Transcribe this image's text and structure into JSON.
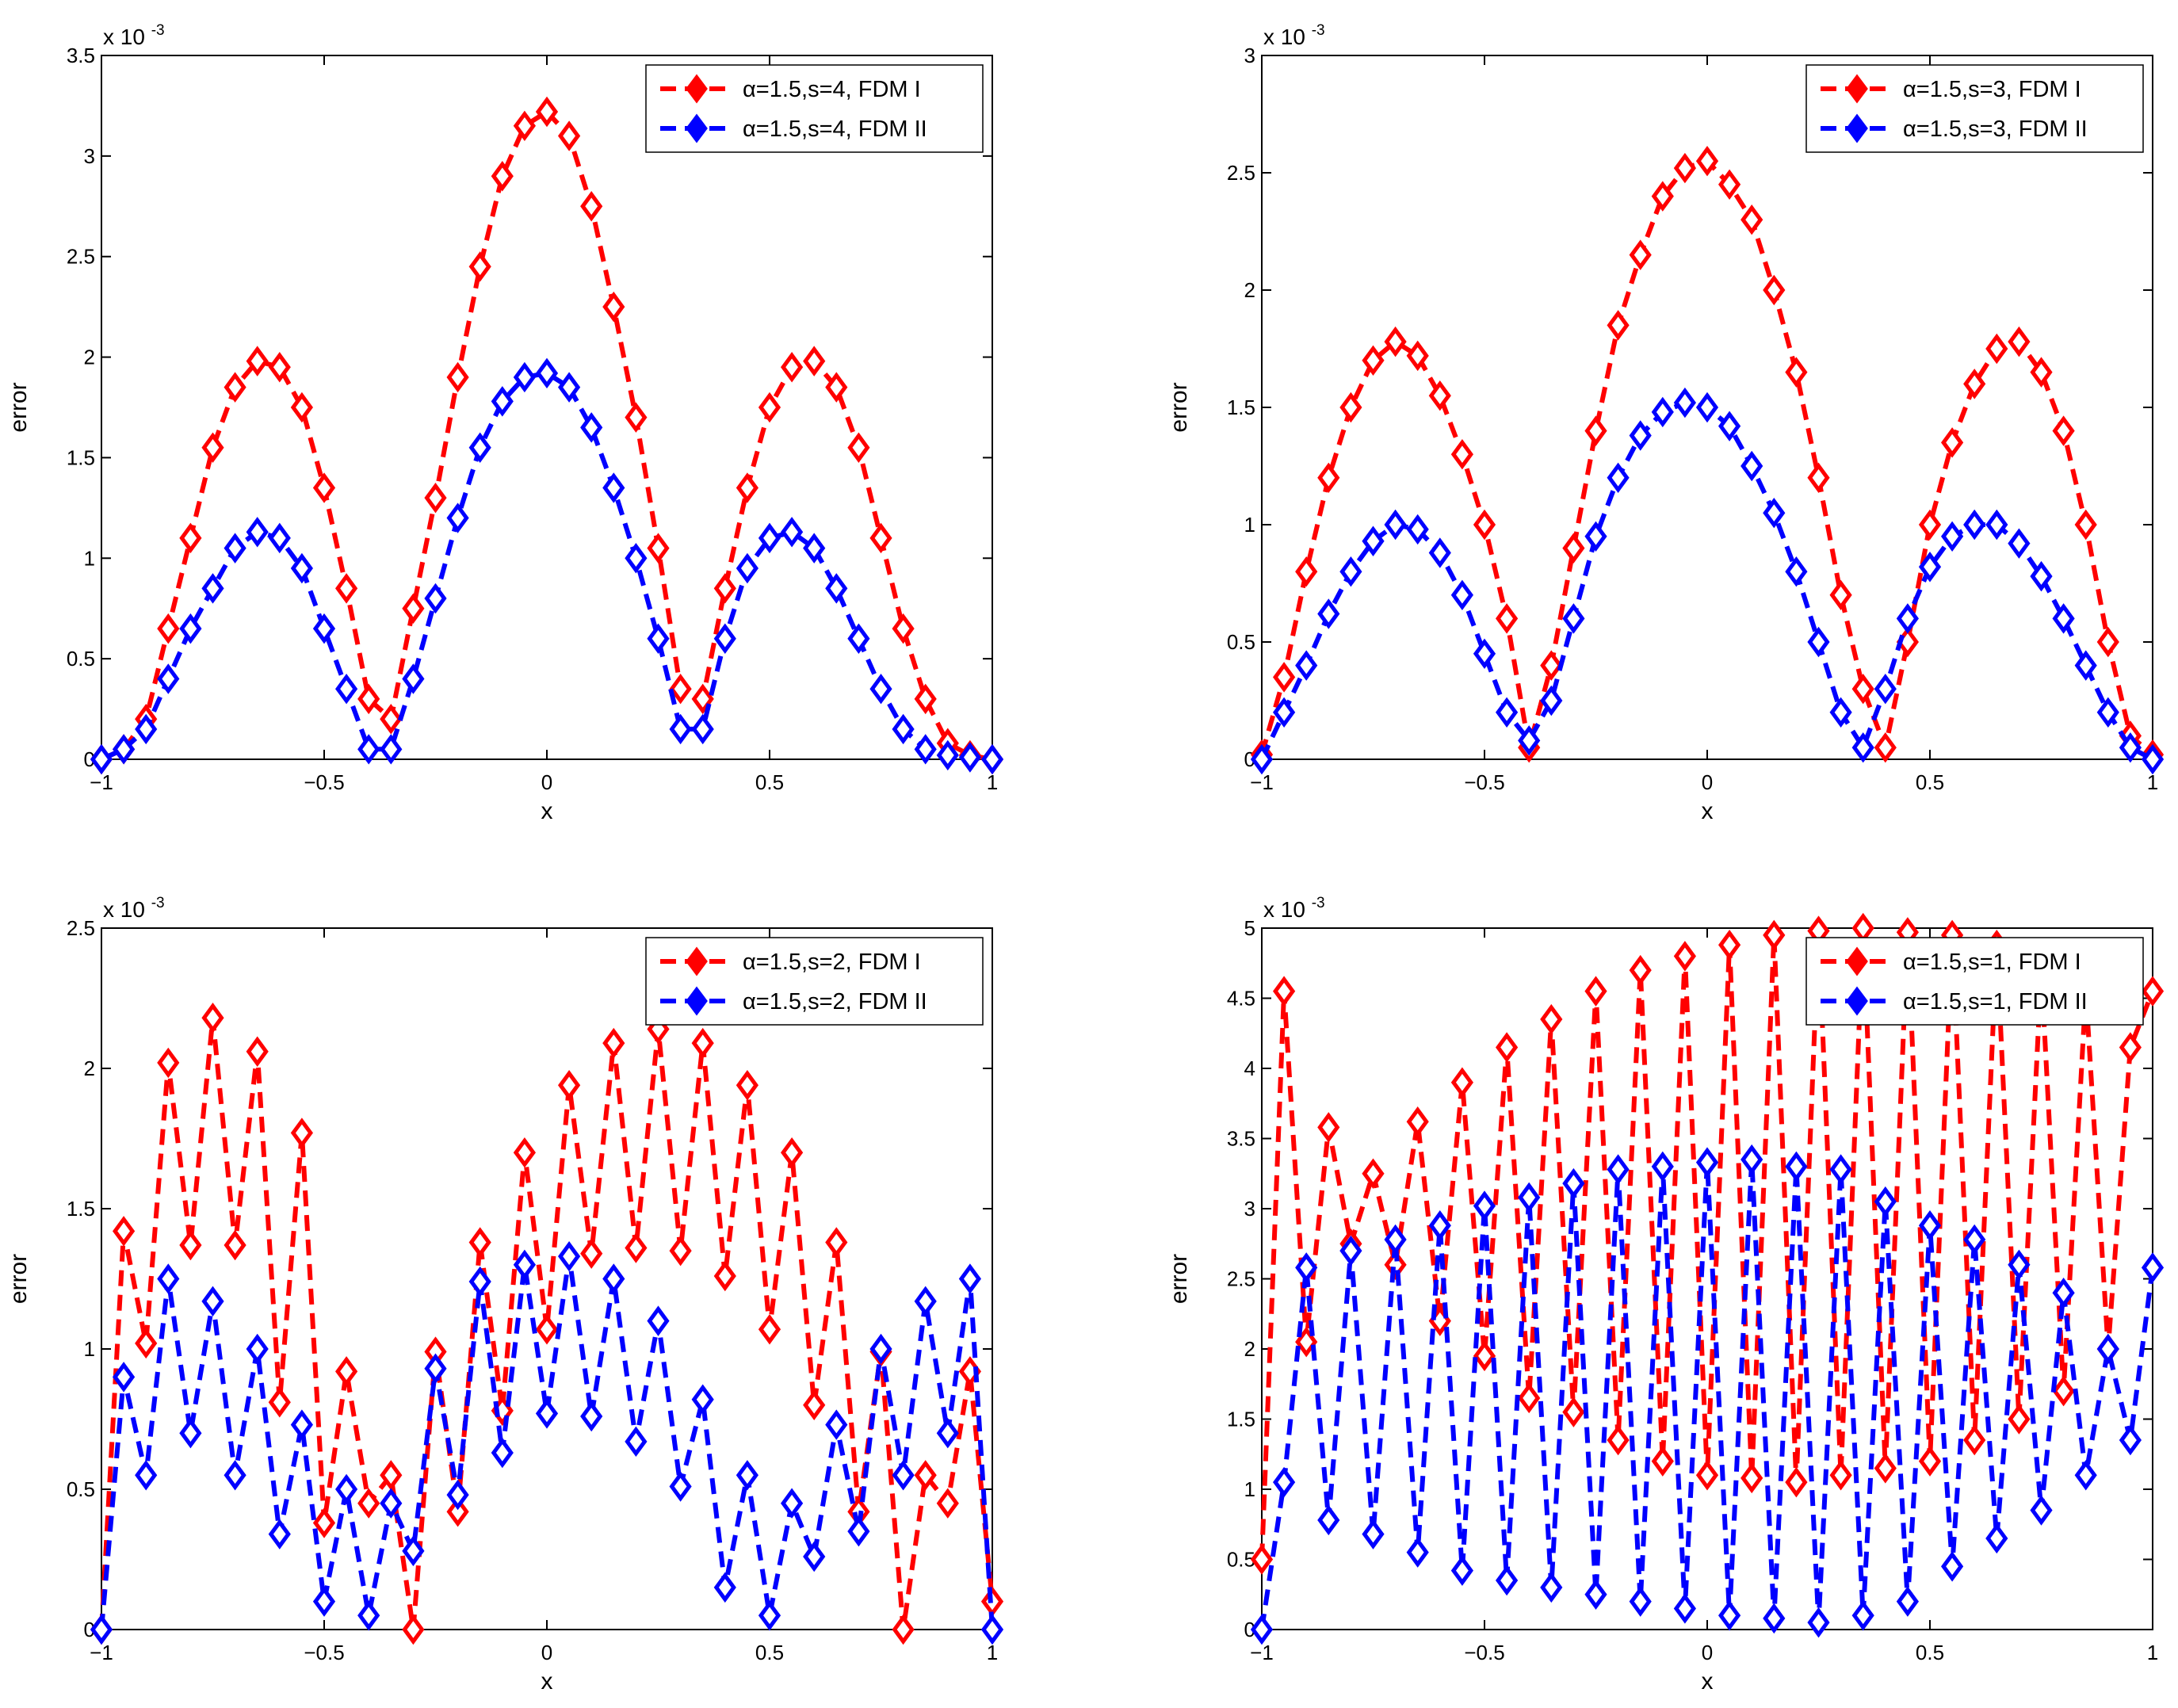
{
  "chart_data": [
    {
      "type": "line",
      "panel": "top-left",
      "xlabel": "x",
      "ylabel": "error",
      "xlim": [
        -1,
        1
      ],
      "ylim": [
        0,
        3.5
      ],
      "xticks": [
        "-1",
        "-0.5",
        "0",
        "0.5",
        "1"
      ],
      "yticks": [
        "0",
        "0.5",
        "1",
        "1.5",
        "2",
        "2.5",
        "3",
        "3.5"
      ],
      "scale_prefix": "x 10",
      "scale_exp": "-3",
      "legend_position": "top-right",
      "series": [
        {
          "name": "α=1.5,s=4, FDM I",
          "color": "#ff0000",
          "x": [
            -1,
            -0.95,
            -0.9,
            -0.85,
            -0.8,
            -0.75,
            -0.7,
            -0.65,
            -0.6,
            -0.55,
            -0.5,
            -0.45,
            -0.4,
            -0.35,
            -0.3,
            -0.25,
            -0.2,
            -0.15,
            -0.1,
            -0.05,
            0,
            0.05,
            0.1,
            0.15,
            0.2,
            0.25,
            0.3,
            0.35,
            0.4,
            0.45,
            0.5,
            0.55,
            0.6,
            0.65,
            0.7,
            0.75,
            0.8,
            0.85,
            0.9,
            0.95,
            1
          ],
          "y": [
            0,
            0.05,
            0.2,
            0.65,
            1.1,
            1.55,
            1.85,
            1.98,
            1.95,
            1.75,
            1.35,
            0.85,
            0.3,
            0.2,
            0.75,
            1.3,
            1.9,
            2.45,
            2.9,
            3.15,
            3.22,
            3.1,
            2.75,
            2.25,
            1.7,
            1.05,
            0.35,
            0.3,
            0.85,
            1.35,
            1.75,
            1.95,
            1.98,
            1.85,
            1.55,
            1.1,
            0.65,
            0.3,
            0.08,
            0.02,
            0
          ]
        },
        {
          "name": "α=1.5,s=4, FDM II",
          "color": "#0000ff",
          "x": [
            -1,
            -0.95,
            -0.9,
            -0.85,
            -0.8,
            -0.75,
            -0.7,
            -0.65,
            -0.6,
            -0.55,
            -0.5,
            -0.45,
            -0.4,
            -0.35,
            -0.3,
            -0.25,
            -0.2,
            -0.15,
            -0.1,
            -0.05,
            0,
            0.05,
            0.1,
            0.15,
            0.2,
            0.25,
            0.3,
            0.35,
            0.4,
            0.45,
            0.5,
            0.55,
            0.6,
            0.65,
            0.7,
            0.75,
            0.8,
            0.85,
            0.9,
            0.95,
            1
          ],
          "y": [
            0,
            0.05,
            0.15,
            0.4,
            0.65,
            0.85,
            1.05,
            1.13,
            1.1,
            0.95,
            0.65,
            0.35,
            0.05,
            0.05,
            0.4,
            0.8,
            1.2,
            1.55,
            1.78,
            1.9,
            1.92,
            1.85,
            1.65,
            1.35,
            1.0,
            0.6,
            0.15,
            0.15,
            0.6,
            0.95,
            1.1,
            1.13,
            1.05,
            0.85,
            0.6,
            0.35,
            0.15,
            0.05,
            0.02,
            0.01,
            0
          ]
        }
      ]
    },
    {
      "type": "line",
      "panel": "top-right",
      "xlabel": "x",
      "ylabel": "error",
      "xlim": [
        -1,
        1
      ],
      "ylim": [
        0,
        3
      ],
      "xticks": [
        "-1",
        "-0.5",
        "0",
        "0.5",
        "1"
      ],
      "yticks": [
        "0",
        "0.5",
        "1",
        "1.5",
        "2",
        "2.5",
        "3"
      ],
      "scale_prefix": "x 10",
      "scale_exp": "-3",
      "legend_position": "top-right",
      "series": [
        {
          "name": "α=1.5,s=3, FDM I",
          "color": "#ff0000",
          "x": [
            -1,
            -0.95,
            -0.9,
            -0.85,
            -0.8,
            -0.75,
            -0.7,
            -0.65,
            -0.6,
            -0.55,
            -0.5,
            -0.45,
            -0.4,
            -0.35,
            -0.3,
            -0.25,
            -0.2,
            -0.15,
            -0.1,
            -0.05,
            0,
            0.05,
            0.1,
            0.15,
            0.2,
            0.25,
            0.3,
            0.35,
            0.4,
            0.45,
            0.5,
            0.55,
            0.6,
            0.65,
            0.7,
            0.75,
            0.8,
            0.85,
            0.9,
            0.95,
            1
          ],
          "y": [
            0.02,
            0.35,
            0.8,
            1.2,
            1.5,
            1.7,
            1.78,
            1.72,
            1.55,
            1.3,
            1.0,
            0.6,
            0.05,
            0.4,
            0.9,
            1.4,
            1.85,
            2.15,
            2.4,
            2.52,
            2.55,
            2.45,
            2.3,
            2.0,
            1.65,
            1.2,
            0.7,
            0.3,
            0.05,
            0.5,
            1.0,
            1.35,
            1.6,
            1.75,
            1.78,
            1.65,
            1.4,
            1.0,
            0.5,
            0.1,
            0.02
          ]
        },
        {
          "name": "α=1.5,s=3, FDM II",
          "color": "#0000ff",
          "x": [
            -1,
            -0.95,
            -0.9,
            -0.85,
            -0.8,
            -0.75,
            -0.7,
            -0.65,
            -0.6,
            -0.55,
            -0.5,
            -0.45,
            -0.4,
            -0.35,
            -0.3,
            -0.25,
            -0.2,
            -0.15,
            -0.1,
            -0.05,
            0,
            0.05,
            0.1,
            0.15,
            0.2,
            0.25,
            0.3,
            0.35,
            0.4,
            0.45,
            0.5,
            0.55,
            0.6,
            0.65,
            0.7,
            0.75,
            0.8,
            0.85,
            0.9,
            0.95,
            1
          ],
          "y": [
            0,
            0.2,
            0.4,
            0.62,
            0.8,
            0.93,
            1.0,
            0.98,
            0.88,
            0.7,
            0.45,
            0.2,
            0.08,
            0.25,
            0.6,
            0.95,
            1.2,
            1.38,
            1.48,
            1.52,
            1.5,
            1.42,
            1.25,
            1.05,
            0.8,
            0.5,
            0.2,
            0.05,
            0.3,
            0.6,
            0.82,
            0.95,
            1.0,
            1.0,
            0.92,
            0.78,
            0.6,
            0.4,
            0.2,
            0.05,
            0
          ]
        }
      ]
    },
    {
      "type": "line",
      "panel": "bottom-left",
      "xlabel": "x",
      "ylabel": "error",
      "xlim": [
        -1,
        1
      ],
      "ylim": [
        0,
        2.5
      ],
      "xticks": [
        "-1",
        "-0.5",
        "0",
        "0.5",
        "1"
      ],
      "yticks": [
        "0",
        "0.5",
        "1",
        "1.5",
        "2",
        "2.5"
      ],
      "scale_prefix": "x 10",
      "scale_exp": "-3",
      "legend_position": "top-right",
      "series": [
        {
          "name": "α=1.5,s=2, FDM I",
          "color": "#ff0000",
          "x": [
            -1,
            -0.95,
            -0.9,
            -0.85,
            -0.8,
            -0.75,
            -0.7,
            -0.65,
            -0.6,
            -0.55,
            -0.5,
            -0.45,
            -0.4,
            -0.35,
            -0.3,
            -0.25,
            -0.2,
            -0.15,
            -0.1,
            -0.05,
            0,
            0.05,
            0.1,
            0.15,
            0.2,
            0.25,
            0.3,
            0.35,
            0.4,
            0.45,
            0.5,
            0.55,
            0.6,
            0.65,
            0.7,
            0.75,
            0.8,
            0.85,
            0.9,
            0.95,
            1
          ],
          "y": [
            0,
            1.42,
            1.02,
            2.02,
            1.37,
            2.18,
            1.37,
            2.06,
            0.81,
            1.77,
            0.38,
            0.92,
            0.45,
            0.55,
            0.0,
            0.99,
            0.42,
            1.38,
            0.78,
            1.7,
            1.07,
            1.94,
            1.34,
            2.09,
            1.36,
            2.14,
            1.35,
            2.09,
            1.26,
            1.94,
            1.07,
            1.7,
            0.8,
            1.38,
            0.42,
            0.99,
            0.0,
            0.55,
            0.45,
            0.92,
            0.1
          ]
        },
        {
          "name": "α=1.5,s=2, FDM II",
          "color": "#0000ff",
          "x": [
            -1,
            -0.95,
            -0.9,
            -0.85,
            -0.8,
            -0.75,
            -0.7,
            -0.65,
            -0.6,
            -0.55,
            -0.5,
            -0.45,
            -0.4,
            -0.35,
            -0.3,
            -0.25,
            -0.2,
            -0.15,
            -0.1,
            -0.05,
            0,
            0.05,
            0.1,
            0.15,
            0.2,
            0.25,
            0.3,
            0.35,
            0.4,
            0.45,
            0.5,
            0.55,
            0.6,
            0.65,
            0.7,
            0.75,
            0.8,
            0.85,
            0.9,
            0.95,
            1
          ],
          "y": [
            0,
            0.9,
            0.55,
            1.25,
            0.7,
            1.17,
            0.55,
            1.0,
            0.34,
            0.73,
            0.1,
            0.5,
            0.05,
            0.45,
            0.28,
            0.93,
            0.48,
            1.24,
            0.63,
            1.3,
            0.77,
            1.33,
            0.76,
            1.25,
            0.67,
            1.1,
            0.51,
            0.82,
            0.15,
            0.55,
            0.05,
            0.45,
            0.26,
            0.73,
            0.35,
            1.0,
            0.55,
            1.17,
            0.7,
            1.25,
            0
          ]
        }
      ]
    },
    {
      "type": "line",
      "panel": "bottom-right",
      "xlabel": "x",
      "ylabel": "error",
      "xlim": [
        -1,
        1
      ],
      "ylim": [
        0,
        5
      ],
      "xticks": [
        "-1",
        "-0.5",
        "0",
        "0.5",
        "1"
      ],
      "yticks": [
        "0",
        "0.5",
        "1",
        "1.5",
        "2",
        "2.5",
        "3",
        "3.5",
        "4",
        "4.5",
        "5"
      ],
      "scale_prefix": "x 10",
      "scale_exp": "-3",
      "legend_position": "top-right",
      "series": [
        {
          "name": "α=1.5,s=1, FDM I",
          "color": "#ff0000",
          "x": [
            -1,
            -0.95,
            -0.9,
            -0.85,
            -0.8,
            -0.75,
            -0.7,
            -0.65,
            -0.6,
            -0.55,
            -0.5,
            -0.45,
            -0.4,
            -0.35,
            -0.3,
            -0.25,
            -0.2,
            -0.15,
            -0.1,
            -0.05,
            0,
            0.05,
            0.1,
            0.15,
            0.2,
            0.25,
            0.3,
            0.35,
            0.4,
            0.45,
            0.5,
            0.55,
            0.6,
            0.65,
            0.7,
            0.75,
            0.8,
            0.85,
            0.9,
            0.95,
            1
          ],
          "y": [
            0.5,
            4.55,
            2.05,
            3.58,
            2.75,
            3.25,
            2.6,
            3.62,
            2.2,
            3.9,
            1.95,
            4.15,
            1.65,
            4.35,
            1.55,
            4.55,
            1.35,
            4.7,
            1.2,
            4.8,
            1.1,
            4.88,
            1.08,
            4.95,
            1.05,
            4.98,
            1.1,
            5.0,
            1.15,
            4.97,
            1.2,
            4.95,
            1.35,
            4.88,
            1.5,
            4.7,
            1.7,
            4.55,
            2.0,
            4.15,
            4.55
          ]
        },
        {
          "name": "α=1.5,s=1, FDM II",
          "color": "#0000ff",
          "x": [
            -1,
            -0.95,
            -0.9,
            -0.85,
            -0.8,
            -0.75,
            -0.7,
            -0.65,
            -0.6,
            -0.55,
            -0.5,
            -0.45,
            -0.4,
            -0.35,
            -0.3,
            -0.25,
            -0.2,
            -0.15,
            -0.1,
            -0.05,
            0,
            0.05,
            0.1,
            0.15,
            0.2,
            0.25,
            0.3,
            0.35,
            0.4,
            0.45,
            0.5,
            0.55,
            0.6,
            0.65,
            0.7,
            0.75,
            0.8,
            0.85,
            0.9,
            0.95,
            1
          ],
          "y": [
            0,
            1.05,
            2.58,
            0.78,
            2.7,
            0.68,
            2.78,
            0.55,
            2.88,
            0.42,
            3.02,
            0.35,
            3.08,
            0.3,
            3.18,
            0.25,
            3.28,
            0.2,
            3.3,
            0.15,
            3.33,
            0.1,
            3.35,
            0.08,
            3.3,
            0.05,
            3.28,
            0.1,
            3.05,
            0.2,
            2.88,
            0.45,
            2.78,
            0.65,
            2.6,
            0.85,
            2.4,
            1.1,
            2.0,
            1.35,
            2.58
          ]
        }
      ]
    }
  ]
}
